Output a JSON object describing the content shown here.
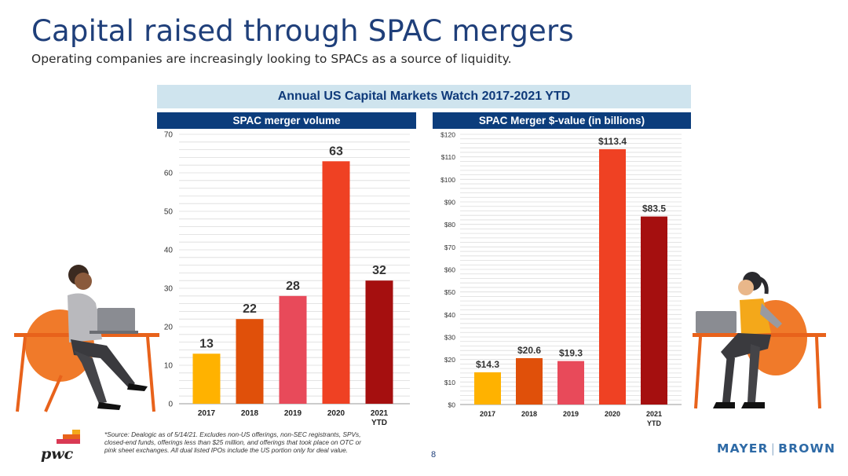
{
  "page": {
    "title": "Capital raised through SPAC mergers",
    "subtitle": "Operating companies are increasingly looking to SPACs as a source of liquidity.",
    "banner": "Annual US Capital Markets Watch 2017-2021 YTD",
    "page_number": "8",
    "footnote": "*Source:  Dealogic as of 5/14/21. Excludes non-US offerings, non-SEC registrants, SPVs, closed-end funds, offerings less than $25 million, and offerings that took place on OTC or pink sheet exchanges. All dual listed IPOs include the US portion only for deal value.",
    "logos": {
      "pwc": "pwc",
      "mayer_brown_left": "MAYER",
      "mayer_brown_sep": "|",
      "mayer_brown_right": "BROWN"
    }
  },
  "illustrations": {
    "left": "person-at-laptop-icon",
    "right": "person-at-laptop-icon"
  },
  "colors": {
    "title": "#1f3f7a",
    "header_bg": "#0c3d7c",
    "banner_bg": "#cfe4ee",
    "bars": [
      "#ffb200",
      "#e0500a",
      "#e84a5a",
      "#ef4123",
      "#a50f0f"
    ]
  },
  "chart_data": [
    {
      "type": "bar",
      "title": "SPAC merger volume",
      "categories": [
        "2017",
        "2018",
        "2019",
        "2020",
        "2021"
      ],
      "category_sublabels": [
        "",
        "",
        "",
        "",
        "YTD"
      ],
      "values": [
        13,
        22,
        28,
        63,
        32
      ],
      "value_labels": [
        "13",
        "22",
        "28",
        "63",
        "32"
      ],
      "ylim": [
        0,
        70
      ],
      "yticks": [
        0,
        10,
        20,
        30,
        40,
        50,
        60,
        70
      ],
      "ytick_labels": [
        "0",
        "10",
        "20",
        "30",
        "40",
        "50",
        "60",
        "70"
      ],
      "grid": true
    },
    {
      "type": "bar",
      "title": "SPAC Merger $-value (in billions)",
      "categories": [
        "2017",
        "2018",
        "2019",
        "2020",
        "2021"
      ],
      "category_sublabels": [
        "",
        "",
        "",
        "",
        "YTD"
      ],
      "values": [
        14.3,
        20.6,
        19.3,
        113.4,
        83.5
      ],
      "value_labels": [
        "$14.3",
        "$20.6",
        "$19.3",
        "$113.4",
        "$83.5"
      ],
      "ylim": [
        0,
        120
      ],
      "yticks": [
        0,
        10,
        20,
        30,
        40,
        50,
        60,
        70,
        80,
        90,
        100,
        110,
        120
      ],
      "ytick_labels": [
        "$0",
        "$10",
        "$20",
        "$30",
        "$40",
        "$50",
        "$60",
        "$70",
        "$80",
        "$90",
        "$100",
        "$110",
        "$120"
      ],
      "grid": true
    }
  ]
}
